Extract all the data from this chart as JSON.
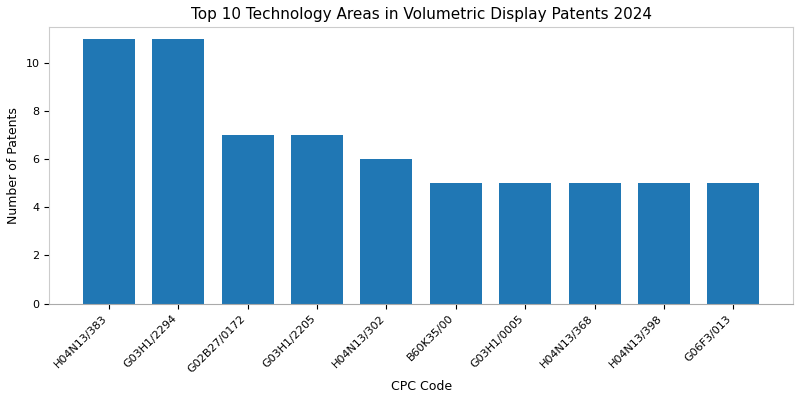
{
  "title": "Top 10 Technology Areas in Volumetric Display Patents 2024",
  "xlabel": "CPC Code",
  "ylabel": "Number of Patents",
  "categories": [
    "H04N13/383",
    "G03H1/2294",
    "G02B27/0172",
    "G03H1/2205",
    "H04N13/302",
    "B60K35/00",
    "G03H1/0005",
    "H04N13/368",
    "H04N13/398",
    "G06F3/013"
  ],
  "values": [
    11,
    11,
    7,
    7,
    6,
    5,
    5,
    5,
    5,
    5
  ],
  "bar_color": "#2077b4",
  "ylim": [
    0,
    11.5
  ],
  "yticks": [
    0,
    2,
    4,
    6,
    8,
    10
  ],
  "title_fontsize": 11,
  "label_fontsize": 9,
  "tick_fontsize": 8,
  "bar_width": 0.75,
  "figsize": [
    8.0,
    4.0
  ],
  "dpi": 100
}
